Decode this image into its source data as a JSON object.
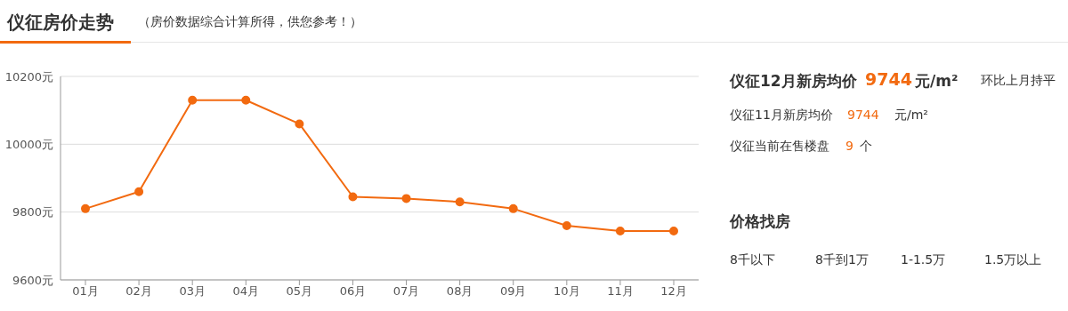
{
  "chart_data": {
    "type": "line",
    "title": "仪征房价走势",
    "subtitle": "（房价数据综合计算所得，供您参考！）",
    "categories": [
      "01月",
      "02月",
      "03月",
      "04月",
      "05月",
      "06月",
      "07月",
      "08月",
      "09月",
      "10月",
      "11月",
      "12月"
    ],
    "series": [
      {
        "color": "#f26a10",
        "values": [
          9810,
          9860,
          10130,
          10130,
          10060,
          9845,
          9840,
          9830,
          9810,
          9760,
          9744,
          9744
        ]
      }
    ],
    "ylim": [
      9600,
      10200
    ],
    "yticks": [
      {
        "value": 9600,
        "label": "9600元"
      },
      {
        "value": 9800,
        "label": "9800元"
      },
      {
        "value": 10000,
        "label": "10000元"
      },
      {
        "value": 10200,
        "label": "10200元"
      }
    ],
    "grid": "y",
    "marker": "circle",
    "line_style": "solid",
    "annotations": [
      "仪征12月新房均价",
      "9744",
      "元/m²",
      "环比上月持平",
      "仪征11月新房均价",
      "9744",
      "元/m²",
      "仪征当前在售楼盘",
      "9",
      "个",
      "价格找房",
      "8千以下",
      "8千到1万",
      "1-1.5万",
      "1.5万以上"
    ]
  }
}
